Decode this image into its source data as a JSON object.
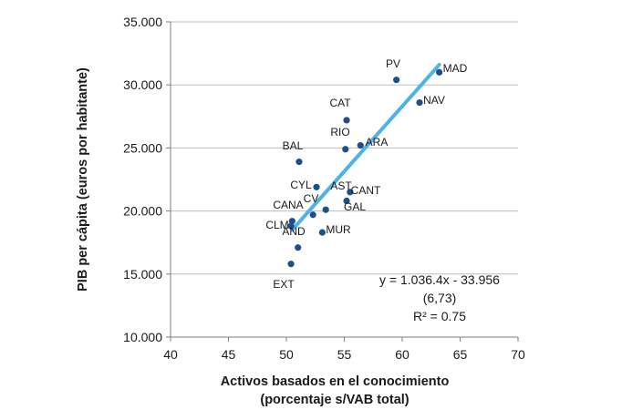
{
  "chart_data": {
    "type": "scatter",
    "xlabel_line1": "Activos basados en el conocimiento",
    "xlabel_line2": "(porcentaje s/VAB total)",
    "ylabel": "PIB per cápita (euros por habitante)",
    "xlim": [
      40,
      70
    ],
    "ylim": [
      10000,
      35000
    ],
    "x_ticks": [
      40,
      45,
      50,
      55,
      60,
      65,
      70
    ],
    "x_tick_labels": [
      "40",
      "45",
      "50",
      "55",
      "60",
      "65",
      "70"
    ],
    "y_ticks": [
      10000,
      15000,
      20000,
      25000,
      30000,
      35000
    ],
    "y_tick_labels": [
      "10.000",
      "15.000",
      "20.000",
      "25.000",
      "30.000",
      "35.000"
    ],
    "grid": "horizontal",
    "point_color": "#1f4e8c",
    "trend_color": "#4fb3e8",
    "points": [
      {
        "label": "PV",
        "x": 59.5,
        "y": 30400
      },
      {
        "label": "MAD",
        "x": 63.2,
        "y": 31000
      },
      {
        "label": "NAV",
        "x": 61.5,
        "y": 28600
      },
      {
        "label": "CAT",
        "x": 55.2,
        "y": 27200
      },
      {
        "label": "RIO",
        "x": 55.1,
        "y": 24900
      },
      {
        "label": "ARA",
        "x": 56.4,
        "y": 25200
      },
      {
        "label": "BAL",
        "x": 51.1,
        "y": 23900
      },
      {
        "label": "CYL",
        "x": 52.6,
        "y": 21900
      },
      {
        "label": "AST",
        "x": 55.5,
        "y": 21500
      },
      {
        "label": "CANT",
        "x": 55.2,
        "y": 20800
      },
      {
        "label": "CV",
        "x": 53.4,
        "y": 20100
      },
      {
        "label": "CANA",
        "x": 52.3,
        "y": 19700
      },
      {
        "label": "GAL",
        "x": 50.5,
        "y": 19200
      },
      {
        "label": "CLM",
        "x": 50.4,
        "y": 18800
      },
      {
        "label": "AND",
        "x": 51.0,
        "y": 17100
      },
      {
        "label": "MUR",
        "x": 53.1,
        "y": 18300
      },
      {
        "label": "EXT",
        "x": 50.4,
        "y": 15800
      }
    ],
    "trendline": {
      "x": [
        50.5,
        63.2
      ],
      "y": [
        18500,
        31600
      ]
    },
    "equation_line1": "y = 1.036.4x - 33.956",
    "equation_line2": "(6,73)",
    "r2": "R² = 0.75"
  }
}
